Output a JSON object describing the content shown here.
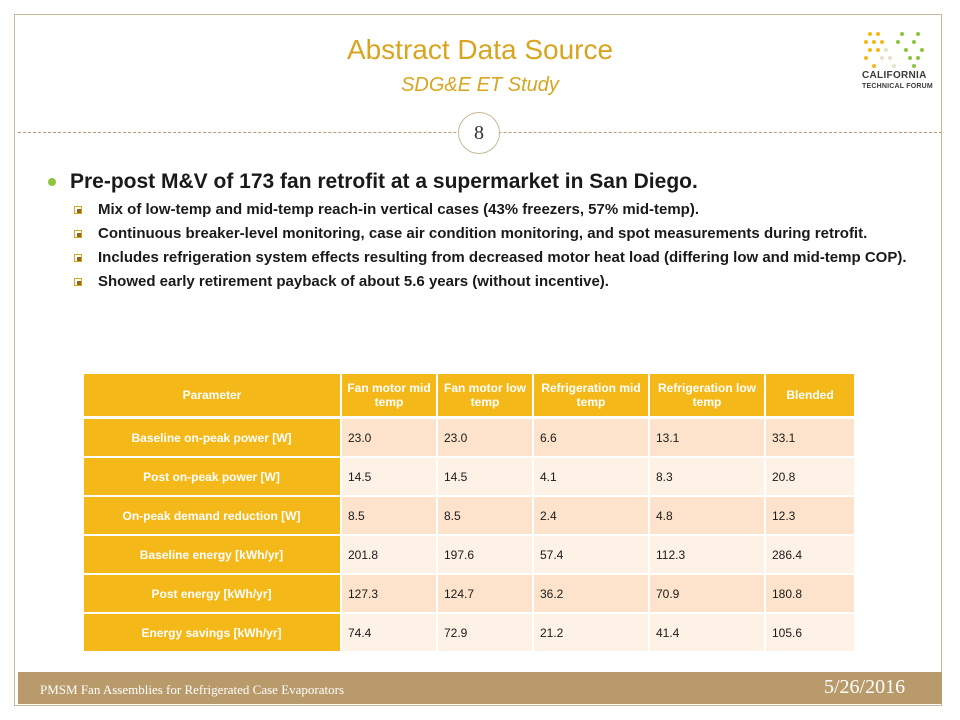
{
  "header": {
    "title": "Abstract Data Source",
    "subtitle": "SDG&E ET Study",
    "page_number": "8",
    "logo_line1": "CALIFORNIA",
    "logo_line2": "TECHNICAL FORUM"
  },
  "bullets": {
    "main": "Pre-post M&V of 173 fan retrofit at a supermarket in San Diego.",
    "sub": [
      "Mix of low-temp and mid-temp reach-in vertical cases (43% freezers, 57% mid-temp).",
      "Continuous breaker-level monitoring, case air condition monitoring, and spot measurements during retrofit.",
      "Includes refrigeration system effects resulting from decreased motor heat load (differing low and mid-temp COP).",
      "Showed early retirement payback of about 5.6 years (without incentive)."
    ]
  },
  "table": {
    "headers": [
      "Parameter",
      "Fan motor mid temp",
      "Fan motor low temp",
      "Refrigeration mid temp",
      "Refrigeration low temp",
      "Blended"
    ],
    "rows": [
      {
        "label": "Baseline on-peak power [W]",
        "values": [
          "23.0",
          "23.0",
          "6.6",
          "13.1",
          "33.1"
        ]
      },
      {
        "label": "Post on-peak power [W]",
        "values": [
          "14.5",
          "14.5",
          "4.1",
          "8.3",
          "20.8"
        ]
      },
      {
        "label": "On-peak demand reduction [W]",
        "values": [
          "8.5",
          "8.5",
          "2.4",
          "4.8",
          "12.3"
        ]
      },
      {
        "label": "Baseline energy [kWh/yr]",
        "values": [
          "201.8",
          "197.6",
          "57.4",
          "112.3",
          "286.4"
        ]
      },
      {
        "label": "Post energy [kWh/yr]",
        "values": [
          "127.3",
          "124.7",
          "36.2",
          "70.9",
          "180.8"
        ]
      },
      {
        "label": "Energy savings [kWh/yr]",
        "values": [
          "74.4",
          "72.9",
          "21.2",
          "41.4",
          "105.6"
        ]
      }
    ]
  },
  "footer": {
    "left": "PMSM Fan Assemblies for Refrigerated Case Evaporators",
    "date": "5/26/2016"
  },
  "colors": {
    "accent": "#f5b819",
    "title": "#d9a520",
    "footer": "#b99a6a",
    "bullet": "#8fc43d"
  }
}
